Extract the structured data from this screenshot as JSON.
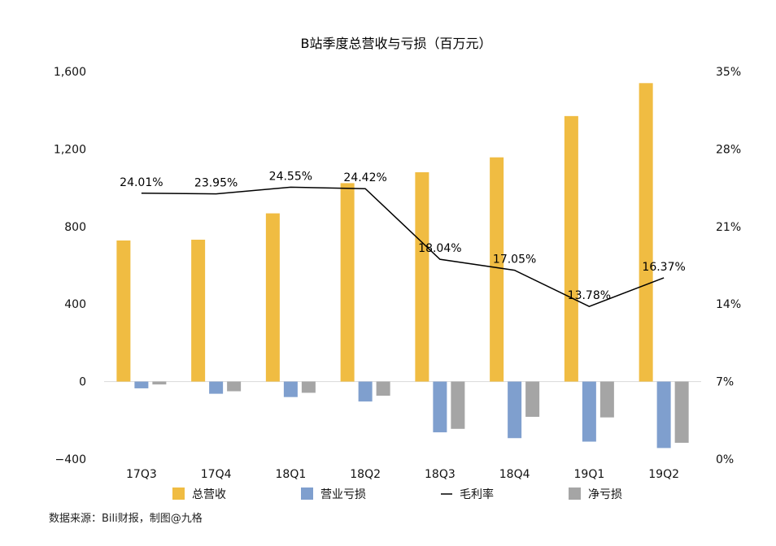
{
  "chart_data": {
    "type": "bar",
    "title": "B站季度总营收与亏损（百万元）",
    "categories": [
      "17Q3",
      "17Q4",
      "18Q1",
      "18Q2",
      "18Q3",
      "18Q4",
      "19Q1",
      "19Q2"
    ],
    "series": [
      {
        "name": "总营收",
        "type": "bar",
        "axis": "left",
        "color": "#F0BC42",
        "values": [
          728,
          732,
          868,
          1024,
          1080,
          1157,
          1370,
          1540
        ]
      },
      {
        "name": "营业亏损",
        "type": "bar",
        "axis": "left",
        "color": "#7F9FCE",
        "values": [
          -35,
          -63,
          -80,
          -103,
          -262,
          -292,
          -310,
          -343
        ]
      },
      {
        "name": "净亏损",
        "type": "bar",
        "axis": "left",
        "color": "#A5A5A5",
        "values": [
          -15,
          -50,
          -58,
          -73,
          -244,
          -182,
          -185,
          -316
        ]
      },
      {
        "name": "毛利率",
        "type": "line",
        "axis": "right",
        "color": "#000000",
        "values": [
          24.01,
          23.95,
          24.55,
          24.42,
          18.04,
          17.05,
          13.78,
          16.37
        ],
        "labels": [
          "24.01%",
          "23.95%",
          "24.55%",
          "24.42%",
          "18.04%",
          "17.05%",
          "13.78%",
          "16.37%"
        ]
      }
    ],
    "y_left": {
      "ylim": [
        -400,
        1600
      ],
      "ticks": [
        -400,
        0,
        400,
        800,
        1200,
        1600
      ],
      "tick_labels": [
        "−400",
        "0",
        "400",
        "800",
        "1,200",
        "1,600"
      ]
    },
    "y_right": {
      "ylim": [
        0,
        35
      ],
      "ticks": [
        0,
        7,
        14,
        21,
        28,
        35
      ],
      "tick_labels": [
        "0%",
        "7%",
        "14%",
        "21%",
        "28%",
        "35%"
      ]
    },
    "legend": {
      "position": "bottom",
      "order": [
        "总营收",
        "营业亏损",
        "毛利率",
        "净亏损"
      ]
    },
    "grid": false
  },
  "source_note": "数据来源：Bili财报，制图@九格"
}
